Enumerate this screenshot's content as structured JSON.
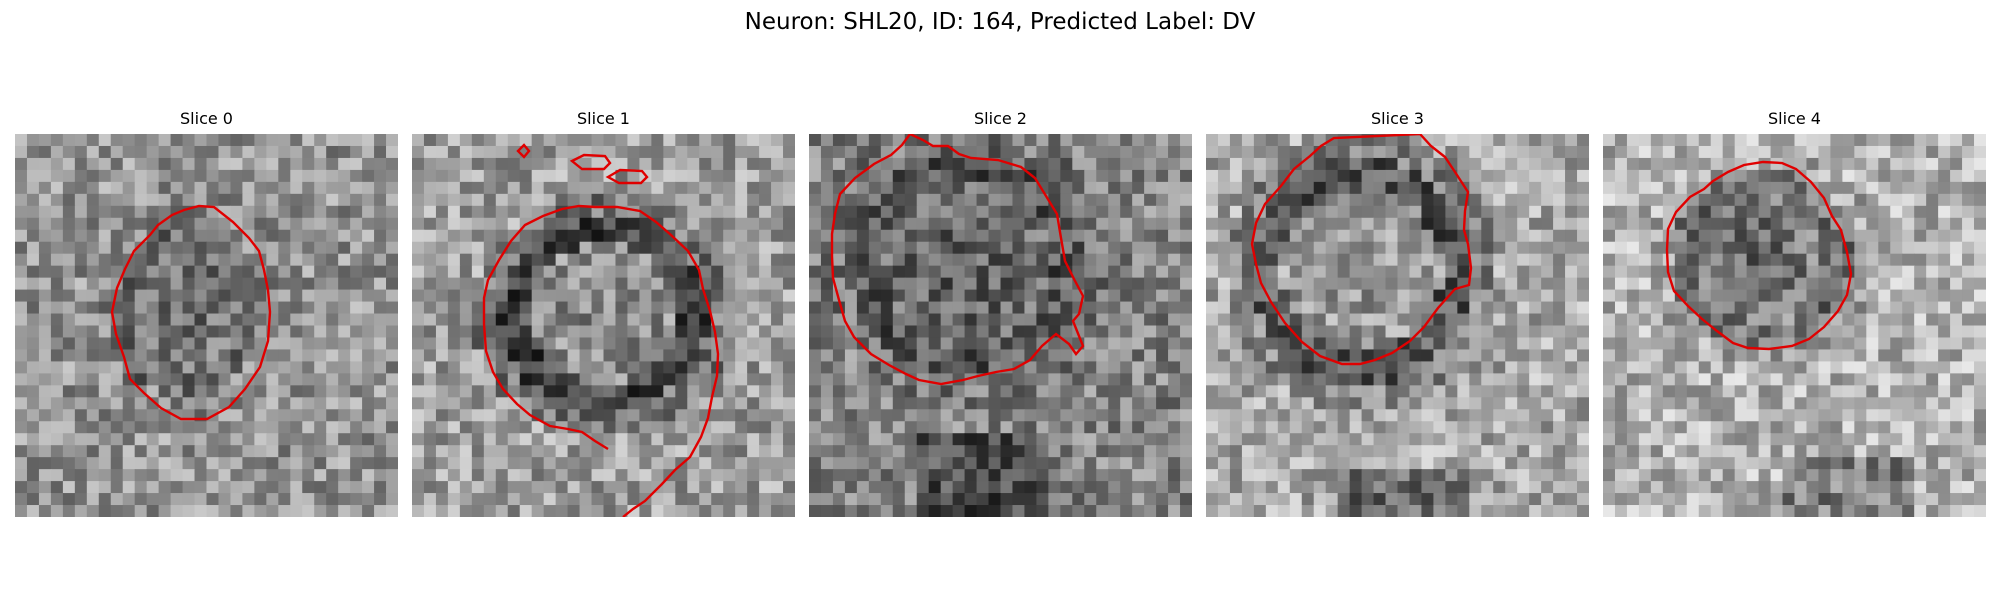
{
  "figure": {
    "title": "Neuron: SHL20, ID: 164, Predicted Label: DV"
  },
  "panels": [
    {
      "title": "Slice 0",
      "image": "grayscale microscopy crop with red contour",
      "contour_color": "#e00000"
    },
    {
      "title": "Slice 1",
      "image": "grayscale microscopy crop with red contour",
      "contour_color": "#e00000"
    },
    {
      "title": "Slice 2",
      "image": "grayscale microscopy crop with red contour",
      "contour_color": "#e00000"
    },
    {
      "title": "Slice 3",
      "image": "grayscale microscopy crop with red contour",
      "contour_color": "#e00000"
    },
    {
      "title": "Slice 4",
      "image": "grayscale microscopy crop with red contour",
      "contour_color": "#e00000"
    }
  ]
}
